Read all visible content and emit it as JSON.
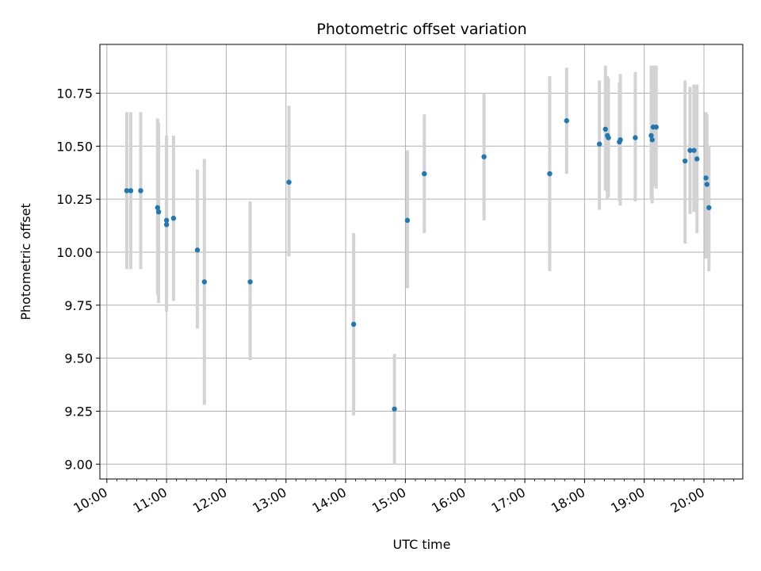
{
  "chart_data": {
    "type": "scatter",
    "title": "Photometric offset variation",
    "xlabel": "UTC time",
    "ylabel": "Photometric offset",
    "x_ticks": [
      "10:00",
      "11:00",
      "12:00",
      "13:00",
      "14:00",
      "15:00",
      "16:00",
      "17:00",
      "18:00",
      "19:00",
      "20:00"
    ],
    "y_ticks": [
      "9.00",
      "9.25",
      "9.50",
      "9.75",
      "10.00",
      "10.25",
      "10.50",
      "10.75"
    ],
    "xlim": [
      "09:53",
      "20:39"
    ],
    "ylim": [
      8.93,
      10.98
    ],
    "grid": true,
    "colors": {
      "point": "#1f77b4",
      "errorbar": "#d3d3d3",
      "grid": "#b0b0b0"
    },
    "series": [
      {
        "x": [
          "10:20",
          "10:24",
          "10:34",
          "10:51",
          "10:52",
          "11:00",
          "11:00",
          "11:07",
          "11:31",
          "11:38",
          "12:24",
          "13:03",
          "14:08",
          "14:49",
          "15:02",
          "15:19",
          "16:19",
          "17:25",
          "17:42",
          "18:15",
          "18:21",
          "18:23",
          "18:24",
          "18:35",
          "18:36",
          "18:51",
          "19:07",
          "19:08",
          "19:09",
          "19:12",
          "19:41",
          "19:46",
          "19:50",
          "19:53",
          "20:02",
          "20:03",
          "20:05"
        ],
        "y": [
          10.29,
          10.29,
          10.29,
          10.21,
          10.19,
          10.15,
          10.13,
          10.16,
          10.01,
          9.86,
          9.86,
          10.33,
          9.66,
          9.26,
          10.15,
          10.37,
          10.45,
          10.37,
          10.62,
          10.51,
          10.58,
          10.55,
          10.54,
          10.52,
          10.53,
          10.54,
          10.55,
          10.53,
          10.59,
          10.59,
          10.43,
          10.48,
          10.48,
          10.44,
          10.35,
          10.32,
          10.21
        ],
        "err_low": [
          9.92,
          9.92,
          9.92,
          9.8,
          9.76,
          9.76,
          9.72,
          9.77,
          9.64,
          9.28,
          9.49,
          9.98,
          9.23,
          9.0,
          9.83,
          10.09,
          10.15,
          9.91,
          10.37,
          10.2,
          10.29,
          10.25,
          10.26,
          10.24,
          10.22,
          10.24,
          10.25,
          10.23,
          10.31,
          10.3,
          10.04,
          10.18,
          10.19,
          10.09,
          9.97,
          9.98,
          9.91
        ],
        "err_high": [
          10.66,
          10.66,
          10.66,
          10.63,
          10.61,
          10.55,
          10.55,
          10.55,
          10.39,
          10.44,
          10.24,
          10.69,
          10.09,
          9.52,
          10.48,
          10.65,
          10.75,
          10.83,
          10.87,
          10.81,
          10.88,
          10.83,
          10.82,
          10.8,
          10.84,
          10.85,
          10.88,
          10.88,
          10.88,
          10.88,
          10.81,
          10.78,
          10.79,
          10.79,
          10.66,
          10.65,
          10.5
        ]
      }
    ]
  }
}
